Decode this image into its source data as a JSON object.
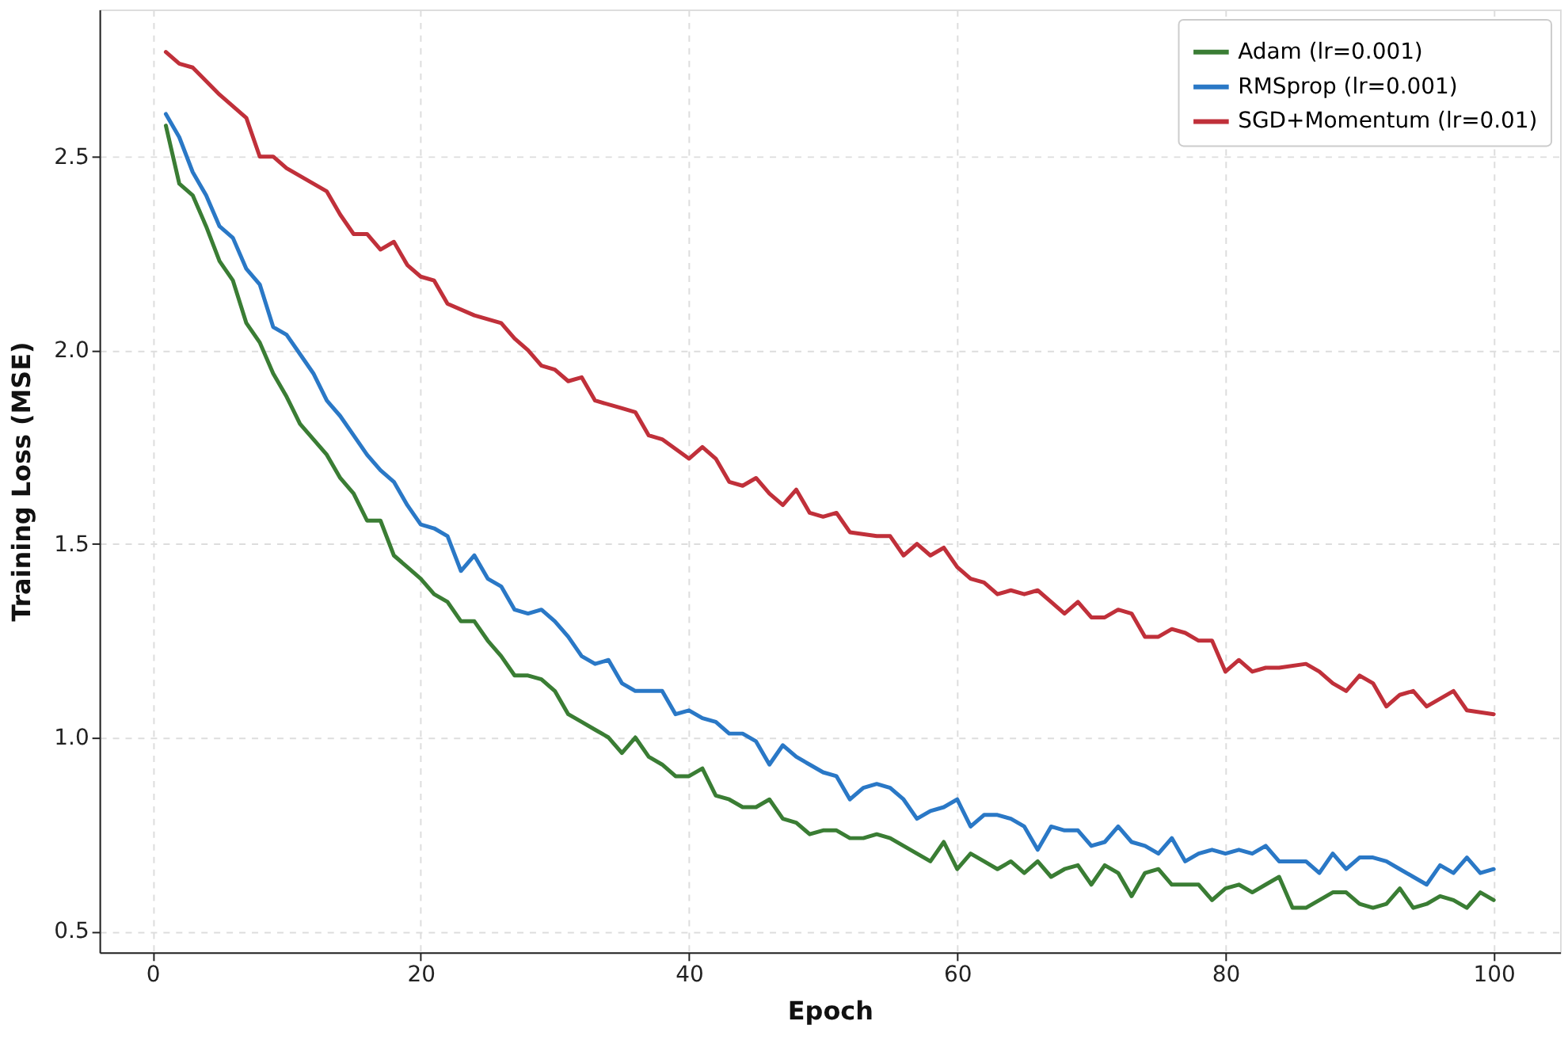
{
  "chart_data": {
    "type": "line",
    "xlabel": "Epoch",
    "ylabel": "Training Loss (MSE)",
    "xlim": [
      -3.95,
      104.95
    ],
    "ylim": [
      0.445,
      2.88
    ],
    "xticks": [
      0,
      20,
      40,
      60,
      80,
      100
    ],
    "yticks": [
      0.5,
      {
        "value": 1,
        "label": "1.0"
      },
      1.5,
      {
        "value": 2,
        "label": "2.0"
      },
      2.5
    ],
    "grid": true,
    "legend": "top right",
    "line_style": "solid",
    "marker": "none",
    "series": [
      {
        "name": "Adam (lr=0.001)",
        "color": "#3a7d34",
        "x": [
          1,
          2,
          3,
          4,
          5,
          6,
          7,
          8,
          9,
          10,
          11,
          12,
          13,
          14,
          15,
          16,
          17,
          18,
          19,
          20,
          21,
          22,
          23,
          24,
          25,
          26,
          27,
          28,
          29,
          30,
          31,
          32,
          33,
          34,
          35,
          36,
          37,
          38,
          39,
          40,
          41,
          42,
          43,
          44,
          45,
          46,
          47,
          48,
          49,
          50,
          51,
          52,
          53,
          54,
          55,
          56,
          57,
          58,
          59,
          60,
          61,
          62,
          63,
          64,
          65,
          66,
          67,
          68,
          69,
          70,
          71,
          72,
          73,
          74,
          75,
          76,
          77,
          78,
          79,
          80,
          81,
          82,
          83,
          84,
          85,
          86,
          87,
          88,
          89,
          90,
          91,
          92,
          93,
          94,
          95,
          96,
          97,
          98,
          99,
          100
        ],
        "values": [
          2.58,
          2.43,
          2.4,
          2.32,
          2.23,
          2.18,
          2.07,
          2.02,
          1.94,
          1.88,
          1.81,
          1.77,
          1.73,
          1.67,
          1.63,
          1.56,
          1.56,
          1.47,
          1.44,
          1.41,
          1.37,
          1.35,
          1.3,
          1.3,
          1.25,
          1.21,
          1.16,
          1.16,
          1.15,
          1.12,
          1.06,
          1.04,
          1.02,
          1.0,
          0.96,
          1.0,
          0.95,
          0.93,
          0.9,
          0.9,
          0.92,
          0.85,
          0.84,
          0.82,
          0.82,
          0.84,
          0.79,
          0.78,
          0.75,
          0.76,
          0.76,
          0.74,
          0.74,
          0.75,
          0.74,
          0.72,
          0.7,
          0.68,
          0.73,
          0.66,
          0.7,
          0.68,
          0.66,
          0.68,
          0.65,
          0.68,
          0.64,
          0.66,
          0.67,
          0.62,
          0.67,
          0.65,
          0.59,
          0.65,
          0.66,
          0.62,
          0.62,
          0.62,
          0.58,
          0.61,
          0.62,
          0.6,
          0.62,
          0.64,
          0.56,
          0.56,
          0.58,
          0.6,
          0.6,
          0.57,
          0.56,
          0.57,
          0.61,
          0.56,
          0.57,
          0.59,
          0.58,
          0.56,
          0.6,
          0.58
        ]
      },
      {
        "name": "RMSprop (lr=0.001)",
        "color": "#2a78c6",
        "x": [
          1,
          2,
          3,
          4,
          5,
          6,
          7,
          8,
          9,
          10,
          11,
          12,
          13,
          14,
          15,
          16,
          17,
          18,
          19,
          20,
          21,
          22,
          23,
          24,
          25,
          26,
          27,
          28,
          29,
          30,
          31,
          32,
          33,
          34,
          35,
          36,
          37,
          38,
          39,
          40,
          41,
          42,
          43,
          44,
          45,
          46,
          47,
          48,
          49,
          50,
          51,
          52,
          53,
          54,
          55,
          56,
          57,
          58,
          59,
          60,
          61,
          62,
          63,
          64,
          65,
          66,
          67,
          68,
          69,
          70,
          71,
          72,
          73,
          74,
          75,
          76,
          77,
          78,
          79,
          80,
          81,
          82,
          83,
          84,
          85,
          86,
          87,
          88,
          89,
          90,
          91,
          92,
          93,
          94,
          95,
          96,
          97,
          98,
          99,
          100
        ],
        "values": [
          2.61,
          2.55,
          2.46,
          2.4,
          2.32,
          2.29,
          2.21,
          2.17,
          2.06,
          2.04,
          1.99,
          1.94,
          1.87,
          1.83,
          1.78,
          1.73,
          1.69,
          1.66,
          1.6,
          1.55,
          1.54,
          1.52,
          1.43,
          1.47,
          1.41,
          1.39,
          1.33,
          1.32,
          1.33,
          1.3,
          1.26,
          1.21,
          1.19,
          1.2,
          1.14,
          1.12,
          1.12,
          1.12,
          1.06,
          1.07,
          1.05,
          1.04,
          1.01,
          1.01,
          0.99,
          0.93,
          0.98,
          0.95,
          0.93,
          0.91,
          0.9,
          0.84,
          0.87,
          0.88,
          0.87,
          0.84,
          0.79,
          0.81,
          0.82,
          0.84,
          0.77,
          0.8,
          0.8,
          0.79,
          0.77,
          0.71,
          0.77,
          0.76,
          0.76,
          0.72,
          0.73,
          0.77,
          0.73,
          0.72,
          0.7,
          0.74,
          0.68,
          0.7,
          0.71,
          0.7,
          0.71,
          0.7,
          0.72,
          0.68,
          0.68,
          0.68,
          0.65,
          0.7,
          0.66,
          0.69,
          0.69,
          0.68,
          0.66,
          0.64,
          0.62,
          0.67,
          0.65,
          0.69,
          0.65,
          0.66
        ]
      },
      {
        "name": "SGD+Momentum (lr=0.01)",
        "color": "#c0303a",
        "x": [
          1,
          2,
          3,
          5,
          7,
          8,
          9,
          10,
          12,
          13,
          14,
          15,
          16,
          17,
          18,
          19,
          20,
          21,
          22,
          24,
          26,
          27,
          28,
          29,
          30,
          31,
          32,
          33,
          35,
          36,
          37,
          38,
          40,
          41,
          42,
          43,
          44,
          45,
          46,
          47,
          48,
          49,
          50,
          51,
          52,
          54,
          55,
          56,
          57,
          58,
          59,
          60,
          61,
          62,
          63,
          64,
          65,
          66,
          67,
          68,
          69,
          70,
          71,
          72,
          73,
          74,
          75,
          76,
          77,
          78,
          79,
          80,
          81,
          82,
          83,
          84,
          86,
          87,
          88,
          89,
          90,
          91,
          92,
          93,
          94,
          95,
          96,
          97,
          98,
          100
        ],
        "values": [
          2.77,
          2.74,
          2.73,
          2.66,
          2.6,
          2.5,
          2.5,
          2.47,
          2.43,
          2.41,
          2.35,
          2.3,
          2.3,
          2.26,
          2.28,
          2.22,
          2.19,
          2.18,
          2.12,
          2.09,
          2.07,
          2.03,
          2.0,
          1.96,
          1.95,
          1.92,
          1.93,
          1.87,
          1.85,
          1.84,
          1.78,
          1.77,
          1.72,
          1.75,
          1.72,
          1.66,
          1.65,
          1.67,
          1.63,
          1.6,
          1.64,
          1.58,
          1.57,
          1.58,
          1.53,
          1.52,
          1.52,
          1.47,
          1.5,
          1.47,
          1.49,
          1.44,
          1.41,
          1.4,
          1.37,
          1.38,
          1.37,
          1.38,
          1.35,
          1.32,
          1.35,
          1.31,
          1.31,
          1.33,
          1.32,
          1.26,
          1.26,
          1.28,
          1.27,
          1.25,
          1.25,
          1.17,
          1.2,
          1.17,
          1.18,
          1.18,
          1.19,
          1.17,
          1.14,
          1.12,
          1.16,
          1.14,
          1.08,
          1.11,
          1.12,
          1.08,
          1.1,
          1.12,
          1.07,
          1.06
        ]
      }
    ]
  }
}
